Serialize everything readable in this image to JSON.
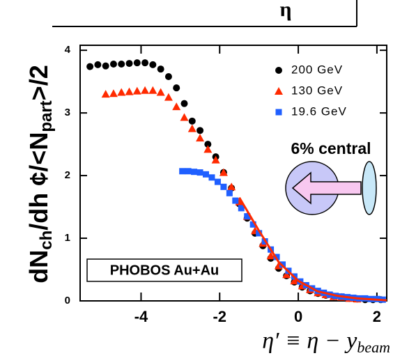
{
  "chart_data": {
    "type": "scatter",
    "top_label": "η",
    "y_label": [
      "dN",
      "ch",
      "/dh ¢/<N",
      "part",
      ">/2"
    ],
    "x_label": [
      "η′ ≡ η − y",
      "beam"
    ],
    "annotations": [
      "6% central",
      "PHOBOS Au+Au"
    ],
    "xlim": [
      -5.55,
      2.25
    ],
    "ylim": [
      0,
      4.08
    ],
    "xticks": [
      -4,
      -2,
      0,
      2
    ],
    "yticks": [
      0,
      1,
      2,
      3,
      4
    ],
    "legend": "upper right",
    "series": [
      {
        "name": "200 GeV",
        "color": "#000000",
        "marker": "circle",
        "x": [
          -5.3,
          -5.1,
          -4.9,
          -4.7,
          -4.5,
          -4.3,
          -4.1,
          -3.9,
          -3.7,
          -3.5,
          -3.3,
          -3.1,
          -2.9,
          -2.7,
          -2.5,
          -2.3,
          -2.1,
          -1.9,
          -1.7,
          -1.5,
          -1.3,
          -1.1,
          -0.9,
          -0.7,
          -0.5,
          -0.3,
          -0.1,
          0.1,
          0.3,
          0.5,
          0.7,
          0.9,
          1.1,
          1.3,
          1.5,
          1.7,
          1.9,
          2.1
        ],
        "values": [
          3.74,
          3.77,
          3.75,
          3.78,
          3.78,
          3.79,
          3.8,
          3.8,
          3.77,
          3.7,
          3.58,
          3.4,
          3.15,
          2.87,
          2.72,
          2.5,
          2.3,
          2.05,
          1.8,
          1.55,
          1.32,
          1.08,
          0.88,
          0.68,
          0.52,
          0.4,
          0.3,
          0.22,
          0.16,
          0.12,
          0.09,
          0.07,
          0.05,
          0.04,
          0.03,
          0.02,
          0.02,
          0.02
        ]
      },
      {
        "name": "130 GeV",
        "color": "#ff2a00",
        "marker": "triangle",
        "x": [
          -4.9,
          -4.7,
          -4.5,
          -4.3,
          -4.1,
          -3.9,
          -3.7,
          -3.5,
          -3.3,
          -3.1,
          -2.9,
          -2.7,
          -2.5,
          -2.3,
          -2.1,
          -1.9,
          -1.7,
          -1.5,
          -1.3,
          -1.1,
          -0.9,
          -0.7,
          -0.5,
          -0.3,
          -0.1,
          0.1,
          0.3,
          0.5,
          0.7,
          0.9,
          1.1,
          1.3,
          1.5
        ],
        "values": [
          3.3,
          3.31,
          3.33,
          3.34,
          3.35,
          3.36,
          3.36,
          3.33,
          3.25,
          3.1,
          2.93,
          2.75,
          2.6,
          2.42,
          2.25,
          2.05,
          1.82,
          1.58,
          1.35,
          1.12,
          0.92,
          0.72,
          0.56,
          0.42,
          0.32,
          0.24,
          0.18,
          0.13,
          0.1,
          0.07,
          0.06,
          0.04,
          0.03
        ]
      },
      {
        "name": "19.6 GeV",
        "color": "#1f5fff",
        "marker": "square",
        "x": [
          -2.95,
          -2.8,
          -2.65,
          -2.5,
          -2.35,
          -2.2,
          -2.05,
          -1.9,
          -1.75,
          -1.6,
          -1.45,
          -1.3,
          -1.15,
          -1.0,
          -0.85,
          -0.7,
          -0.55,
          -0.4,
          -0.25,
          -0.1,
          0.05,
          0.2,
          0.35,
          0.5,
          0.65,
          0.8,
          0.95,
          1.1,
          1.25,
          1.4,
          1.55,
          1.7,
          1.85,
          2.0,
          2.15
        ],
        "values": [
          2.07,
          2.07,
          2.06,
          2.05,
          2.02,
          1.97,
          1.9,
          1.82,
          1.72,
          1.6,
          1.48,
          1.35,
          1.22,
          1.08,
          0.95,
          0.82,
          0.7,
          0.58,
          0.48,
          0.39,
          0.31,
          0.25,
          0.2,
          0.16,
          0.13,
          0.1,
          0.08,
          0.07,
          0.06,
          0.05,
          0.04,
          0.04,
          0.03,
          0.03,
          0.02
        ]
      }
    ],
    "fit": {
      "color": "#ff2a00",
      "x": [
        -1.5,
        -1.0,
        -0.5,
        0,
        0.5,
        1.0,
        1.5,
        2.0,
        2.25
      ],
      "values": [
        1.65,
        1.12,
        0.62,
        0.32,
        0.15,
        0.08,
        0.04,
        0.02,
        0.01
      ]
    }
  }
}
